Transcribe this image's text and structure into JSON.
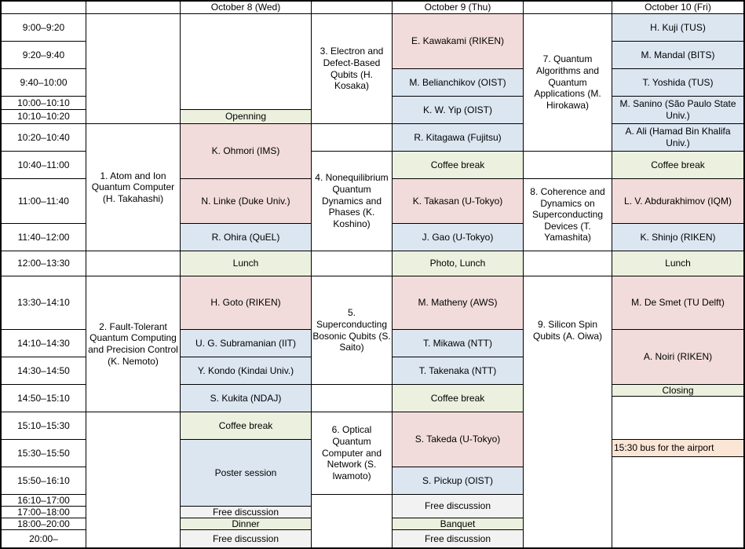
{
  "colors": {
    "white": "#FFFFFF",
    "pink": "#F2DCDB",
    "blue": "#DCE6F1",
    "green": "#EBF1DE",
    "gray": "#F2F2F2",
    "peach": "#FBE5D5"
  },
  "schedule": {
    "day_headers": [
      "October 8 (Wed)",
      "October 9 (Thu)",
      "October 10 (Fri)"
    ],
    "time_slots": [
      "9:00–9:20",
      "9:20–9:40",
      "9:40–10:00",
      "10:00–10:10",
      "10:10–10:20",
      "10:20–10:40",
      "10:40–11:00",
      "11:00–11:40",
      "11:40–12:00",
      "12:00–13:30",
      "13:30–14:10",
      "14:10–14:30",
      "14:30–14:50",
      "14:50–15:10",
      "15:10–15:30",
      "15:30–15:50",
      "15:50–16:10",
      "16:10–17:00",
      "17:00–18:00",
      "18:00–20:00",
      "20:00–"
    ],
    "cells": [
      {
        "name": "corner-cell",
        "text": "",
        "col": 1,
        "row": 1
      },
      {
        "name": "header-spacer",
        "text": "",
        "col": 2,
        "row": 1
      },
      {
        "name": "day-header-oct8",
        "text": "October 8 (Wed)",
        "col": 3,
        "row": 1
      },
      {
        "name": "header-spacer",
        "text": "",
        "col": 4,
        "row": 1
      },
      {
        "name": "day-header-oct9",
        "text": "October 9 (Thu)",
        "col": 5,
        "row": 1
      },
      {
        "name": "header-spacer",
        "text": "",
        "col": 6,
        "row": 1
      },
      {
        "name": "day-header-oct10",
        "text": "October 10 (Fri)",
        "col": 7,
        "row": 1
      },
      {
        "name": "time-slot",
        "text": "9:00–9:20",
        "col": 1,
        "row": 2
      },
      {
        "name": "time-slot",
        "text": "9:20–9:40",
        "col": 1,
        "row": 3
      },
      {
        "name": "time-slot",
        "text": "9:40–10:00",
        "col": 1,
        "row": 4
      },
      {
        "name": "time-slot",
        "text": "10:00–10:10",
        "col": 1,
        "row": 5
      },
      {
        "name": "time-slot",
        "text": "10:10–10:20",
        "col": 1,
        "row": 6
      },
      {
        "name": "time-slot",
        "text": "10:20–10:40",
        "col": 1,
        "row": 7
      },
      {
        "name": "time-slot",
        "text": "10:40–11:00",
        "col": 1,
        "row": 8
      },
      {
        "name": "time-slot",
        "text": "11:00–11:40",
        "col": 1,
        "row": 9
      },
      {
        "name": "time-slot",
        "text": "11:40–12:00",
        "col": 1,
        "row": 10
      },
      {
        "name": "time-slot",
        "text": "12:00–13:30",
        "col": 1,
        "row": 11
      },
      {
        "name": "time-slot",
        "text": "13:30–14:10",
        "col": 1,
        "row": 12
      },
      {
        "name": "time-slot",
        "text": "14:10–14:30",
        "col": 1,
        "row": 13
      },
      {
        "name": "time-slot",
        "text": "14:30–14:50",
        "col": 1,
        "row": 14
      },
      {
        "name": "time-slot",
        "text": "14:50–15:10",
        "col": 1,
        "row": 15,
        "span": 2
      },
      {
        "name": "time-slot",
        "text": "15:10–15:30",
        "col": 1,
        "row": 17
      },
      {
        "name": "time-slot",
        "text": "15:30–15:50",
        "col": 1,
        "row": 18,
        "span": 2
      },
      {
        "name": "time-slot",
        "text": "15:50–16:10",
        "col": 1,
        "row": 20
      },
      {
        "name": "time-slot",
        "text": "16:10–17:00",
        "col": 1,
        "row": 21
      },
      {
        "name": "time-slot",
        "text": "17:00–18:00",
        "col": 1,
        "row": 22
      },
      {
        "name": "time-slot",
        "text": "18:00–20:00",
        "col": 1,
        "row": 23
      },
      {
        "name": "time-slot",
        "text": "20:00–",
        "col": 1,
        "row": 24
      },
      {
        "name": "empty-cell",
        "text": "",
        "col": 2,
        "row": 2,
        "span": 5
      },
      {
        "name": "session-title-1",
        "text": "1. Atom and Ion Quantum Computer (H. Takahashi)",
        "col": 2,
        "row": 7,
        "span": 4
      },
      {
        "name": "empty-cell",
        "text": "",
        "col": 2,
        "row": 11
      },
      {
        "name": "session-title-2",
        "text": "2. Fault-Tolerant Quantum Computing and Precision Control (K. Nemoto)",
        "col": 2,
        "row": 12,
        "span": 5
      },
      {
        "name": "empty-cell",
        "text": "",
        "col": 2,
        "row": 17,
        "span": 8
      },
      {
        "name": "empty-cell",
        "text": "",
        "col": 3,
        "row": 2,
        "span": 4
      },
      {
        "name": "opening-cell",
        "text": "Openning",
        "col": 3,
        "row": 6,
        "bg": "green"
      },
      {
        "name": "talk-ohmori",
        "text": "K. Ohmori (IMS)",
        "col": 3,
        "row": 7,
        "span": 2,
        "bg": "pink"
      },
      {
        "name": "talk-linke",
        "text": "N. Linke (Duke Univ.)",
        "col": 3,
        "row": 9,
        "bg": "pink"
      },
      {
        "name": "talk-ohira",
        "text": "R. Ohira (QuEL)",
        "col": 3,
        "row": 10,
        "bg": "blue"
      },
      {
        "name": "lunch-cell",
        "text": "Lunch",
        "col": 3,
        "row": 11,
        "bg": "green"
      },
      {
        "name": "talk-goto",
        "text": "H. Goto (RIKEN)",
        "col": 3,
        "row": 12,
        "bg": "pink"
      },
      {
        "name": "talk-subramanian",
        "text": "U. G. Subramanian (IIT)",
        "col": 3,
        "row": 13,
        "bg": "blue"
      },
      {
        "name": "talk-kondo",
        "text": "Y. Kondo (Kindai Univ.)",
        "col": 3,
        "row": 14,
        "bg": "blue"
      },
      {
        "name": "talk-kukita",
        "text": "S. Kukita (NDAJ)",
        "col": 3,
        "row": 15,
        "span": 2,
        "bg": "blue"
      },
      {
        "name": "coffee-break-cell",
        "text": "Coffee break",
        "col": 3,
        "row": 17,
        "bg": "green"
      },
      {
        "name": "poster-session-cell",
        "text": "Poster session",
        "col": 3,
        "row": 18,
        "span": 4,
        "bg": "blue"
      },
      {
        "name": "free-discussion-cell",
        "text": "Free discussion",
        "col": 3,
        "row": 22,
        "bg": "gray"
      },
      {
        "name": "dinner-cell",
        "text": "Dinner",
        "col": 3,
        "row": 23,
        "bg": "green"
      },
      {
        "name": "free-discussion-cell",
        "text": "Free discussion",
        "col": 3,
        "row": 24,
        "bg": "gray"
      },
      {
        "name": "header-spacer",
        "text": "",
        "col": 4,
        "row": 1
      },
      {
        "name": "session-title-3",
        "text": "3. Electron and Defect-Based Qubits (H. Kosaka)",
        "col": 4,
        "row": 2,
        "span": 5
      },
      {
        "name": "empty-cell",
        "text": "",
        "col": 4,
        "row": 7
      },
      {
        "name": "session-title-4",
        "text": "4. Nonequilibrium Quantum Dynamics and Phases (K. Koshino)",
        "col": 4,
        "row": 8,
        "span": 3
      },
      {
        "name": "empty-cell",
        "text": "",
        "col": 4,
        "row": 11
      },
      {
        "name": "session-title-5",
        "text": "5. Superconducting Bosonic Qubits (S. Saito)",
        "col": 4,
        "row": 12,
        "span": 3
      },
      {
        "name": "empty-cell",
        "text": "",
        "col": 4,
        "row": 15,
        "span": 2
      },
      {
        "name": "session-title-6",
        "text": "6. Optical Quantum Computer and Network (S. Iwamoto)",
        "col": 4,
        "row": 17,
        "span": 4
      },
      {
        "name": "empty-cell",
        "text": "",
        "col": 4,
        "row": 21,
        "span": 4
      },
      {
        "name": "talk-kawakami",
        "text": "E. Kawakami (RIKEN)",
        "col": 5,
        "row": 2,
        "span": 2,
        "bg": "pink"
      },
      {
        "name": "talk-belianchikov",
        "text": "M. Belianchikov (OIST)",
        "col": 5,
        "row": 4,
        "bg": "blue"
      },
      {
        "name": "talk-yip",
        "text": "K. W. Yip (OIST)",
        "col": 5,
        "row": 5,
        "span": 2,
        "bg": "blue"
      },
      {
        "name": "talk-kitagawa",
        "text": "R. Kitagawa (Fujitsu)",
        "col": 5,
        "row": 7,
        "bg": "blue"
      },
      {
        "name": "coffee-break-cell",
        "text": "Coffee break",
        "col": 5,
        "row": 8,
        "bg": "green"
      },
      {
        "name": "talk-takasan",
        "text": "K. Takasan (U-Tokyo)",
        "col": 5,
        "row": 9,
        "bg": "pink"
      },
      {
        "name": "talk-gao",
        "text": "J. Gao (U-Tokyo)",
        "col": 5,
        "row": 10,
        "bg": "blue"
      },
      {
        "name": "photo-lunch-cell",
        "text": "Photo, Lunch",
        "col": 5,
        "row": 11,
        "bg": "green"
      },
      {
        "name": "talk-matheny",
        "text": "M. Matheny (AWS)",
        "col": 5,
        "row": 12,
        "bg": "pink"
      },
      {
        "name": "talk-mikawa",
        "text": "T. Mikawa (NTT)",
        "col": 5,
        "row": 13,
        "bg": "blue"
      },
      {
        "name": "talk-takenaka",
        "text": "T. Takenaka (NTT)",
        "col": 5,
        "row": 14,
        "bg": "blue"
      },
      {
        "name": "coffee-break-cell",
        "text": "Coffee break",
        "col": 5,
        "row": 15,
        "span": 2,
        "bg": "green"
      },
      {
        "name": "talk-takeda",
        "text": "S. Takeda (U-Tokyo)",
        "col": 5,
        "row": 17,
        "span": 3,
        "bg": "pink"
      },
      {
        "name": "talk-pickup",
        "text": "S. Pickup (OIST)",
        "col": 5,
        "row": 20,
        "bg": "blue"
      },
      {
        "name": "free-discussion-cell",
        "text": "Free discussion",
        "col": 5,
        "row": 21,
        "span": 2,
        "bg": "gray"
      },
      {
        "name": "banquet-cell",
        "text": "Banquet",
        "col": 5,
        "row": 23,
        "bg": "green"
      },
      {
        "name": "free-discussion-cell",
        "text": "Free discussion",
        "col": 5,
        "row": 24,
        "bg": "gray"
      },
      {
        "name": "session-title-7",
        "text": "7. Quantum Algorithms and Quantum Applications (M. Hirokawa)",
        "col": 6,
        "row": 2,
        "span": 6
      },
      {
        "name": "empty-cell",
        "text": "",
        "col": 6,
        "row": 8
      },
      {
        "name": "session-title-8",
        "text": "8. Coherence and Dynamics on Superconducting Devices (T. Yamashita)",
        "col": 6,
        "row": 9,
        "span": 2
      },
      {
        "name": "empty-cell",
        "text": "",
        "col": 6,
        "row": 11
      },
      {
        "name": "session-title-9",
        "text": "9. Silicon Spin Qubits (A. Oiwa)",
        "col": 6,
        "row": 12,
        "span": 3,
        "no_bottom": true
      },
      {
        "name": "empty-cell",
        "text": "",
        "col": 6,
        "row": 15,
        "span": 10
      },
      {
        "name": "talk-kuji",
        "text": "H. Kuji (TUS)",
        "col": 7,
        "row": 2,
        "bg": "blue"
      },
      {
        "name": "talk-mandal",
        "text": "M. Mandal (BITS)",
        "col": 7,
        "row": 3,
        "bg": "blue"
      },
      {
        "name": "talk-yoshida",
        "text": "T. Yoshida (TUS)",
        "col": 7,
        "row": 4,
        "bg": "blue"
      },
      {
        "name": "talk-sanino",
        "text": "M. Sanino (São Paulo State Univ.)",
        "col": 7,
        "row": 5,
        "span": 2,
        "bg": "blue"
      },
      {
        "name": "talk-ali",
        "text": "A. Ali (Hamad Bin Khalifa Univ.)",
        "col": 7,
        "row": 7,
        "bg": "blue"
      },
      {
        "name": "coffee-break-cell",
        "text": "Coffee break",
        "col": 7,
        "row": 8,
        "bg": "green"
      },
      {
        "name": "talk-abdurakhimov",
        "text": "L. V. Abdurakhimov (IQM)",
        "col": 7,
        "row": 9,
        "bg": "pink"
      },
      {
        "name": "talk-shinjo",
        "text": "K. Shinjo (RIKEN)",
        "col": 7,
        "row": 10,
        "bg": "blue"
      },
      {
        "name": "lunch-cell",
        "text": "Lunch",
        "col": 7,
        "row": 11,
        "bg": "green"
      },
      {
        "name": "talk-desmet",
        "text": "M. De Smet (TU Delft)",
        "col": 7,
        "row": 12,
        "bg": "pink"
      },
      {
        "name": "talk-noiri",
        "text": "A. Noiri (RIKEN)",
        "col": 7,
        "row": 13,
        "span": 2,
        "bg": "pink"
      },
      {
        "name": "closing-cell",
        "text": "Closing",
        "col": 7,
        "row": 15,
        "bg": "green"
      },
      {
        "name": "empty-cell",
        "text": "",
        "col": 7,
        "row": 16,
        "span": 2
      },
      {
        "name": "note-bus-airport",
        "text": "15:30 bus for the airport",
        "col": 7,
        "row": 18,
        "bg": "peach",
        "align": "left"
      },
      {
        "name": "empty-cell",
        "text": "",
        "col": 7,
        "row": 19,
        "span": 6
      }
    ]
  }
}
